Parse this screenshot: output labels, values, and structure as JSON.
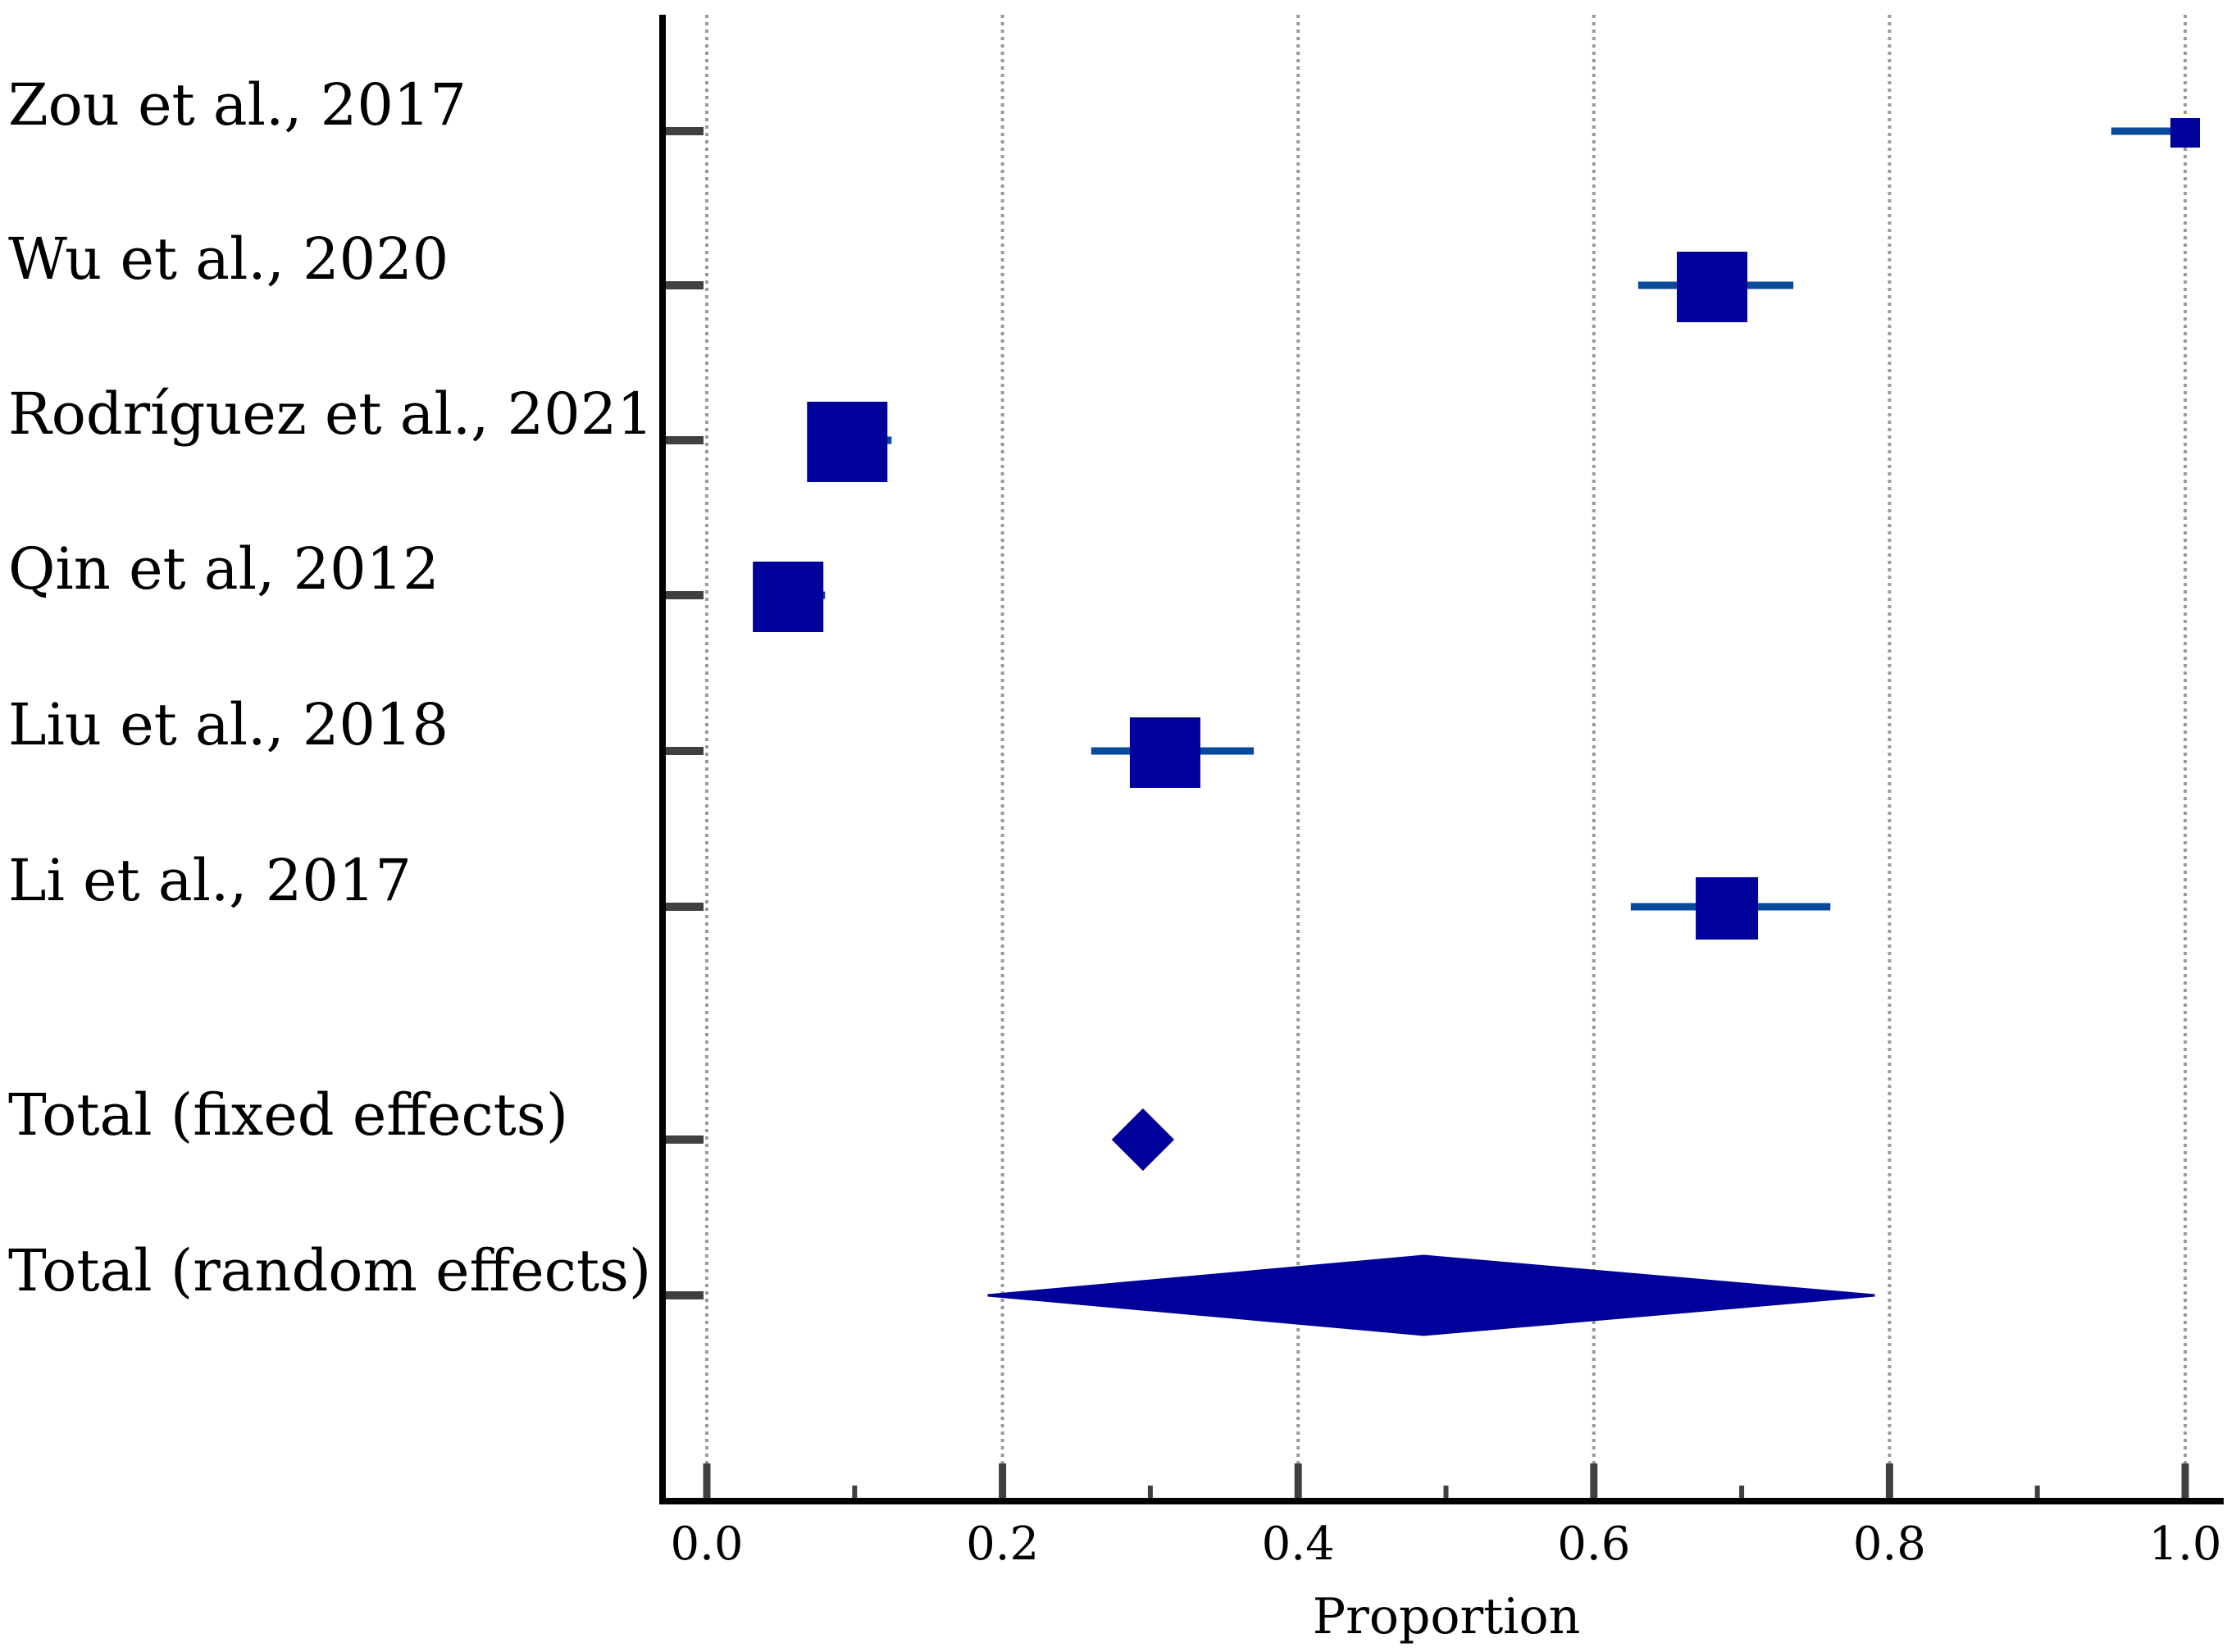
{
  "chart_data": {
    "type": "forest",
    "title": "",
    "xlabel": "Proportion",
    "ylabel": "",
    "xlim": [
      0.0,
      1.0
    ],
    "x_ticks": [
      0.0,
      0.2,
      0.4,
      0.6,
      0.8,
      1.0
    ],
    "x_tick_labels": [
      "0.0",
      "0.2",
      "0.4",
      "0.6",
      "0.8",
      "1.0"
    ],
    "x_minor_ticks": [
      0.1,
      0.3,
      0.5,
      0.7,
      0.9
    ],
    "grid": "vertical dotted at major ticks",
    "colors": {
      "marker": "#00009a",
      "ci_line": "#0a4a9a",
      "axis": "#000000",
      "tick": "#404040",
      "grid": "#9a9a9a"
    },
    "studies": [
      {
        "name": "Zou et al., 2017",
        "estimate": 1.0,
        "ci": [
          0.95,
          1.0
        ],
        "weight_rank": 1
      },
      {
        "name": "Wu et al., 2020",
        "estimate": 0.68,
        "ci": [
          0.63,
          0.735
        ],
        "weight_rank": 3
      },
      {
        "name": "Rodríguez et al., 2021",
        "estimate": 0.095,
        "ci": [
          0.075,
          0.125
        ],
        "weight_rank": 4
      },
      {
        "name": "Qin et al, 2012",
        "estimate": 0.055,
        "ci": [
          0.035,
          0.08
        ],
        "weight_rank": 3
      },
      {
        "name": "Liu et al., 2018",
        "estimate": 0.31,
        "ci": [
          0.26,
          0.37
        ],
        "weight_rank": 3
      },
      {
        "name": "Li et al., 2017",
        "estimate": 0.69,
        "ci": [
          0.625,
          0.76
        ],
        "weight_rank": 2
      }
    ],
    "pooled": [
      {
        "name": "Total (fixed effects)",
        "estimate": 0.295,
        "ci": [
          0.275,
          0.315
        ]
      },
      {
        "name": "Total (random effects)",
        "estimate": 0.485,
        "ci": [
          0.19,
          0.79
        ]
      }
    ]
  }
}
